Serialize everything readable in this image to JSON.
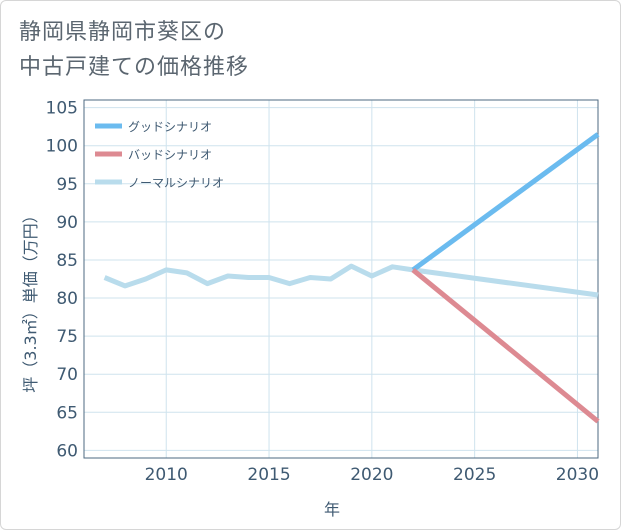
{
  "title": {
    "line1": "静岡県静岡市葵区の",
    "line2": "中古戸建ての価格推移"
  },
  "chart_data": {
    "type": "line",
    "title": "静岡県静岡市葵区の中古戸建ての価格推移",
    "xlabel": "年",
    "ylabel": "坪（3.3㎡）単価（万円）",
    "xlim": [
      2006,
      2031
    ],
    "ylim": [
      59,
      106
    ],
    "xticks": [
      2010,
      2015,
      2020,
      2025,
      2030
    ],
    "yticks": [
      60,
      65,
      70,
      75,
      80,
      85,
      90,
      95,
      100,
      105
    ],
    "grid": true,
    "legend_position": "top-left",
    "series": [
      {
        "name": "グッドシナリオ",
        "color": "#6bbbef",
        "x": [
          2022,
          2031
        ],
        "values": [
          83.7,
          101.5
        ]
      },
      {
        "name": "バッドシナリオ",
        "color": "#dd8a92",
        "x": [
          2022,
          2031
        ],
        "values": [
          83.7,
          63.8
        ]
      },
      {
        "name": "ノーマルシナリオ",
        "color": "#b9dcec",
        "x": [
          2007,
          2008,
          2009,
          2010,
          2011,
          2012,
          2013,
          2014,
          2015,
          2016,
          2017,
          2018,
          2019,
          2020,
          2021,
          2022,
          2031
        ],
        "values": [
          82.7,
          81.6,
          82.5,
          83.7,
          83.3,
          81.9,
          82.9,
          82.7,
          82.7,
          81.9,
          82.7,
          82.5,
          84.2,
          82.9,
          84.1,
          83.7,
          80.4
        ]
      }
    ]
  }
}
